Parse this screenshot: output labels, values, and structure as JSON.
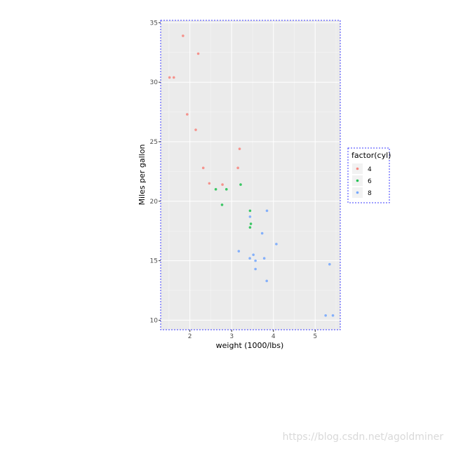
{
  "watermark": "https://blog.csdn.net/agoldminer",
  "colors": {
    "panel_bg": "#ebebeb",
    "grid_major": "#ffffff",
    "outline": "#3b3bff"
  },
  "chart_data": {
    "type": "scatter",
    "title": "",
    "xlabel": "weight (1000/lbs)",
    "ylabel": "Miles per gallon",
    "xlim": [
      1.3,
      5.6
    ],
    "ylim": [
      9.2,
      35.2
    ],
    "xticks": [
      2,
      3,
      4,
      5
    ],
    "yticks": [
      10,
      15,
      20,
      25,
      30,
      35
    ],
    "grid": true,
    "legend": {
      "title": "factor(cyl)",
      "position": "right"
    },
    "series": [
      {
        "name": "4",
        "color": "#F8766D",
        "points": [
          {
            "x": 2.32,
            "y": 22.8
          },
          {
            "x": 3.19,
            "y": 24.4
          },
          {
            "x": 3.15,
            "y": 22.8
          },
          {
            "x": 2.2,
            "y": 32.4
          },
          {
            "x": 1.615,
            "y": 30.4
          },
          {
            "x": 1.835,
            "y": 33.9
          },
          {
            "x": 2.465,
            "y": 21.5
          },
          {
            "x": 1.935,
            "y": 27.3
          },
          {
            "x": 2.14,
            "y": 26.0
          },
          {
            "x": 1.513,
            "y": 30.4
          },
          {
            "x": 2.78,
            "y": 21.4
          }
        ]
      },
      {
        "name": "6",
        "color": "#00BA38",
        "points": [
          {
            "x": 2.62,
            "y": 21.0
          },
          {
            "x": 2.875,
            "y": 21.0
          },
          {
            "x": 3.215,
            "y": 21.4
          },
          {
            "x": 3.46,
            "y": 18.1
          },
          {
            "x": 3.44,
            "y": 19.2
          },
          {
            "x": 3.44,
            "y": 17.8
          },
          {
            "x": 2.77,
            "y": 19.7
          }
        ]
      },
      {
        "name": "8",
        "color": "#619CFF",
        "points": [
          {
            "x": 3.44,
            "y": 18.7
          },
          {
            "x": 3.57,
            "y": 14.3
          },
          {
            "x": 4.07,
            "y": 16.4
          },
          {
            "x": 3.73,
            "y": 17.3
          },
          {
            "x": 3.78,
            "y": 15.2
          },
          {
            "x": 5.25,
            "y": 10.4
          },
          {
            "x": 5.424,
            "y": 10.4
          },
          {
            "x": 5.345,
            "y": 14.7
          },
          {
            "x": 3.52,
            "y": 15.5
          },
          {
            "x": 3.435,
            "y": 15.2
          },
          {
            "x": 3.84,
            "y": 13.3
          },
          {
            "x": 3.845,
            "y": 19.2
          },
          {
            "x": 3.17,
            "y": 15.8
          },
          {
            "x": 3.57,
            "y": 15.0
          }
        ]
      }
    ]
  }
}
